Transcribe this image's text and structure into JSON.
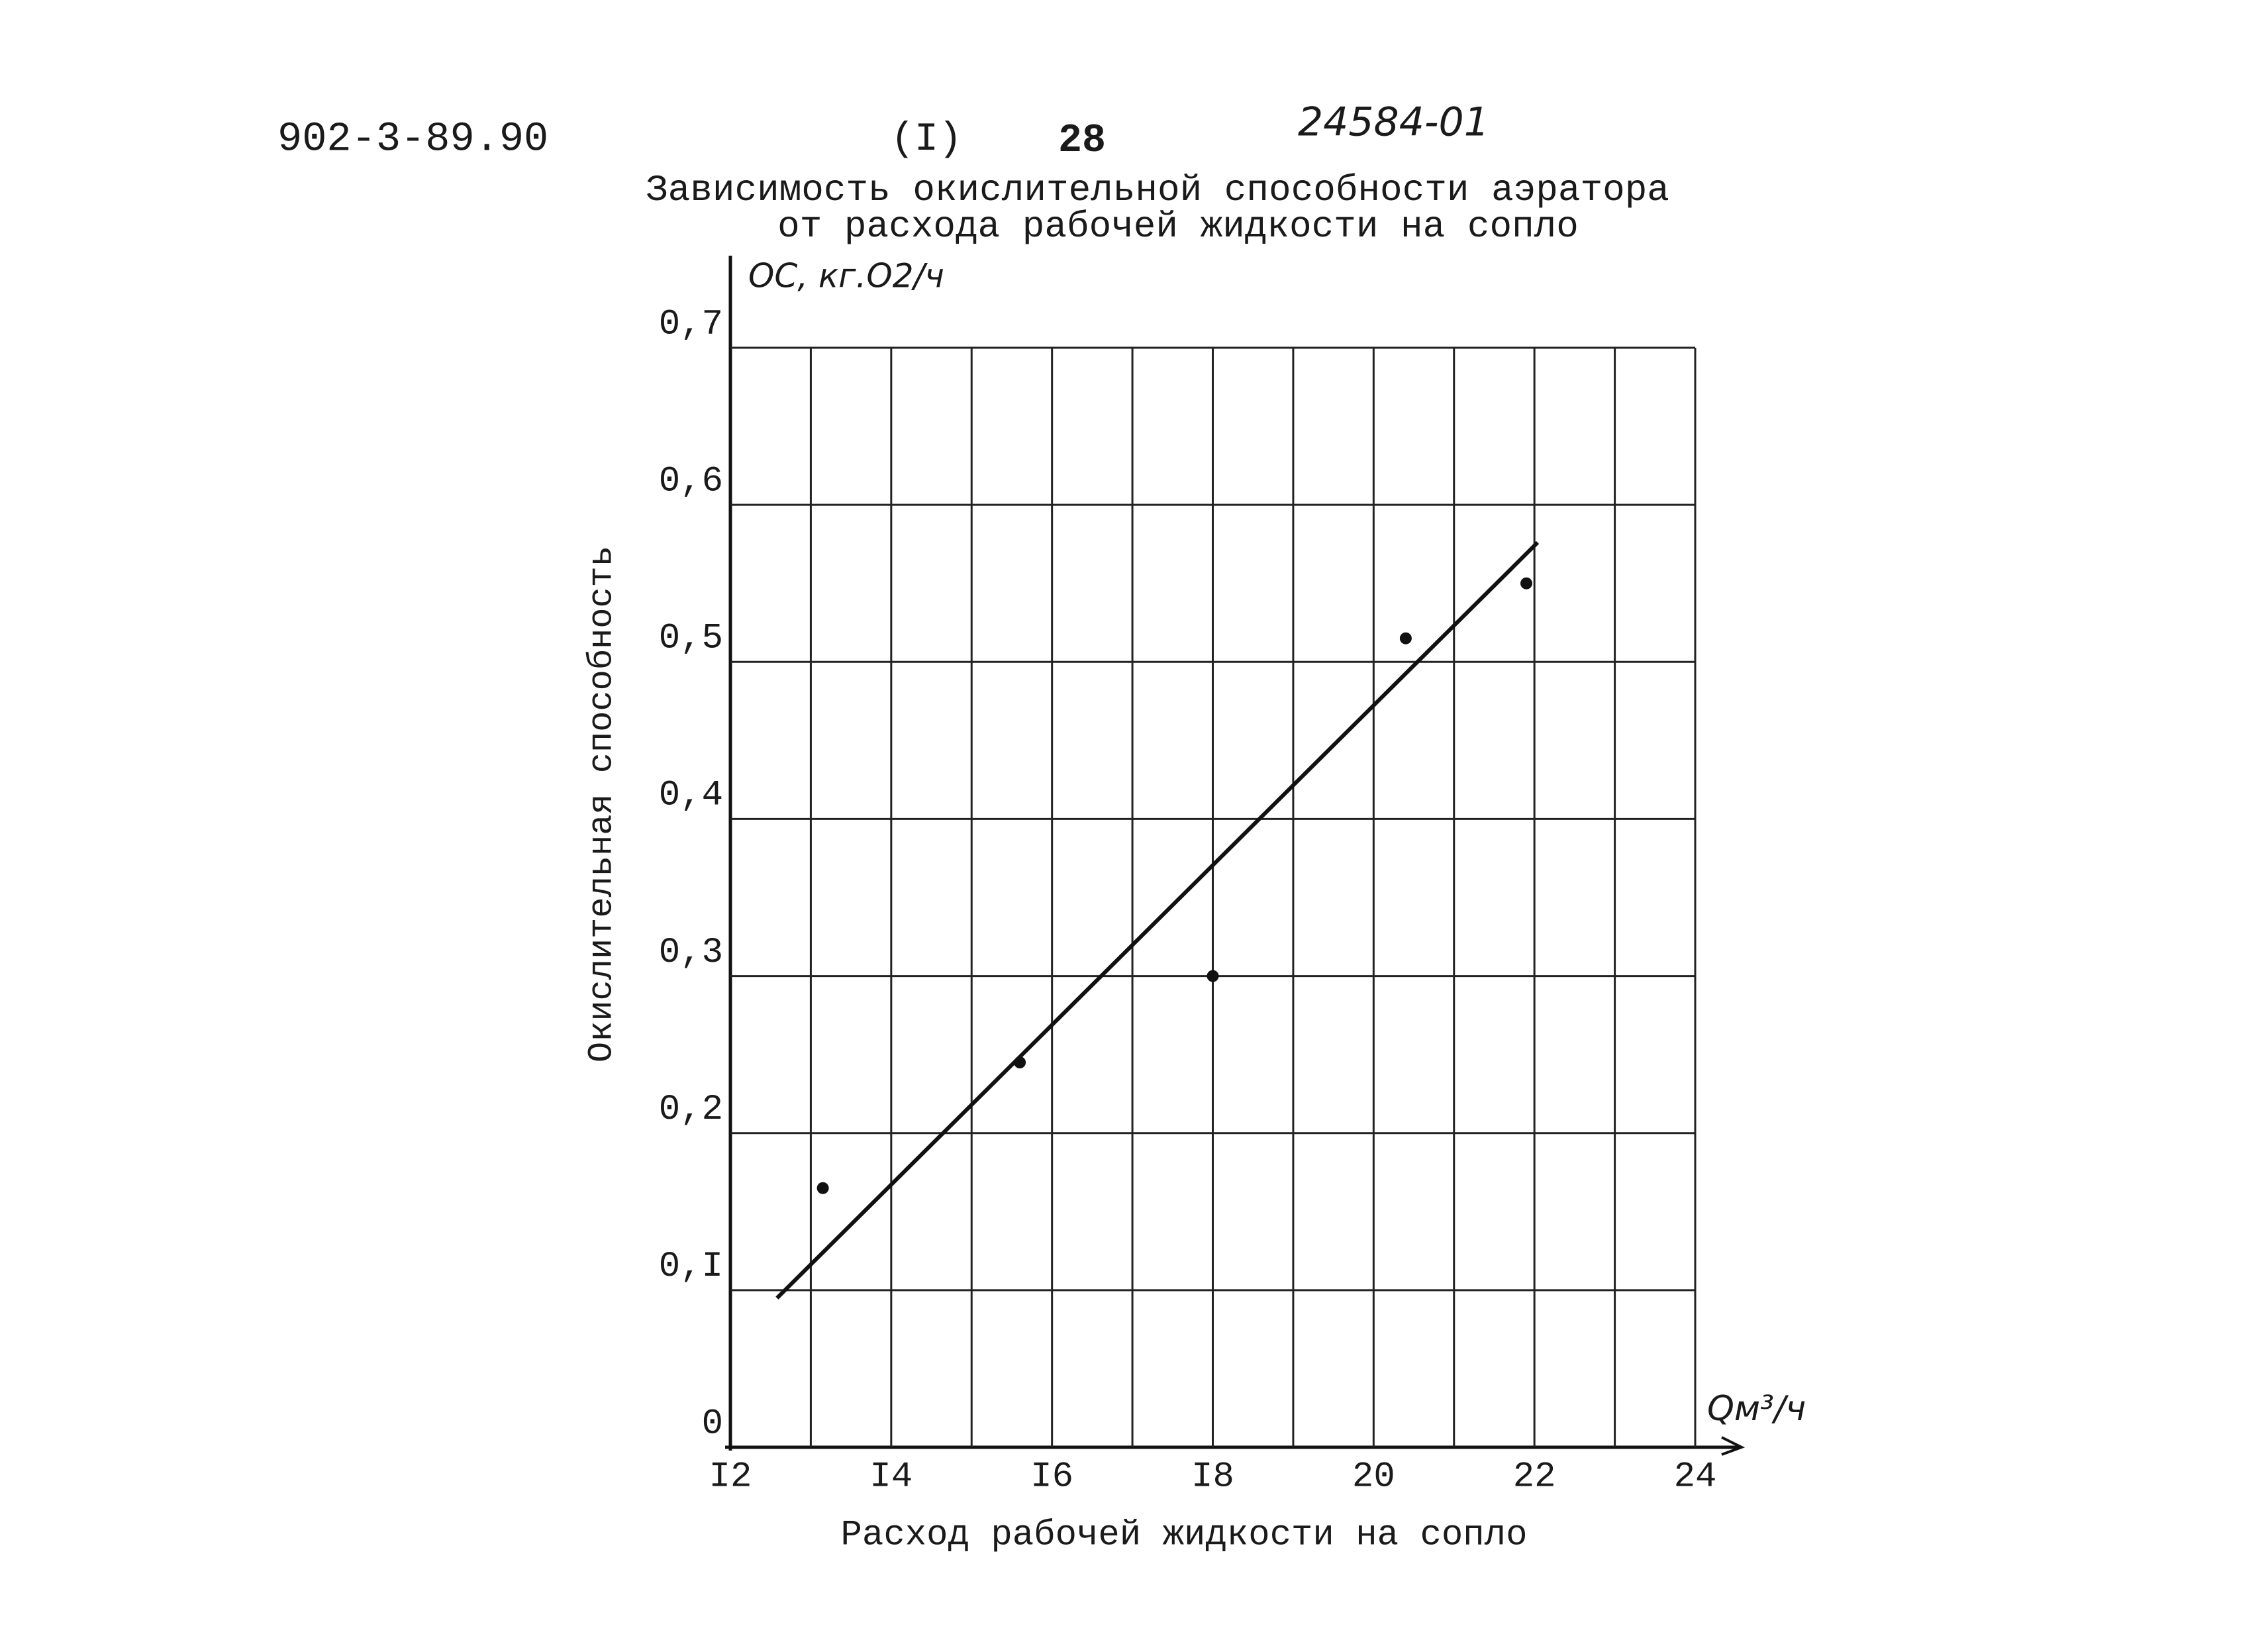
{
  "header": {
    "doc_number": "902-3-89.90",
    "part": "(I)",
    "page": "28",
    "code": "24584-01"
  },
  "chart_data": {
    "type": "scatter",
    "title": [
      "Зависимость окислительной способности аэратора",
      "от расхода рабочей жидкости на сопло"
    ],
    "y_unit_label": "ОС, кг.О2/ч",
    "y_axis_label": "Окислительная способность",
    "x_unit_label": "Qм³/ч",
    "x_axis_label": "Расход рабочей жидкости на сопло",
    "xlim": [
      12,
      24
    ],
    "ylim": [
      0,
      0.7
    ],
    "xticks": [
      {
        "value": 12,
        "label": "I2"
      },
      {
        "value": 14,
        "label": "I4"
      },
      {
        "value": 16,
        "label": "I6"
      },
      {
        "value": 18,
        "label": "I8"
      },
      20,
      22,
      24
    ],
    "xminorticks": [
      13,
      15,
      17,
      19,
      21,
      23
    ],
    "yticks": [
      0,
      {
        "value": 0.1,
        "label": "0,I"
      },
      {
        "value": 0.2,
        "label": "0,2"
      },
      {
        "value": 0.3,
        "label": "0,3"
      },
      {
        "value": 0.4,
        "label": "0,4"
      },
      {
        "value": 0.5,
        "label": "0,5"
      },
      {
        "value": 0.6,
        "label": "0,6"
      },
      {
        "value": 0.7,
        "label": "0,7"
      }
    ],
    "grid": true,
    "series": [
      {
        "color": "#111111",
        "x": [
          13.15,
          15.6,
          18.0,
          20.4,
          21.9
        ],
        "values": [
          0.165,
          0.245,
          0.3,
          0.515,
          0.55
        ]
      }
    ],
    "trend_line": {
      "color": "#111111",
      "x": [
        12.58,
        22.04
      ],
      "values": [
        0.095,
        0.576
      ]
    }
  }
}
